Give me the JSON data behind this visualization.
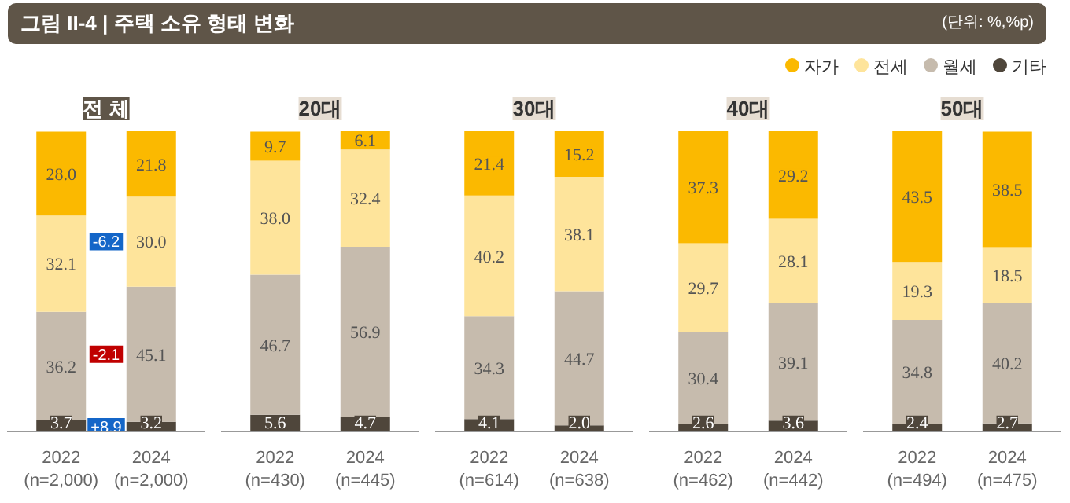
{
  "chart_data": [
    {
      "type": "bar",
      "stacked": true,
      "title": "그림 II-4 | 주택 소유 형태 변화",
      "legend_title": "전 체",
      "legend": "top right",
      "categories": [
        "2022\n(n=2,000)",
        "2024\n(n=2,000)"
      ],
      "series": [
        {
          "name": "기타",
          "color": "#4f463b",
          "values": [
            3.7,
            3.2
          ],
          "value_labels": [
            "3.7",
            "3.2"
          ]
        },
        {
          "name": "월세",
          "color": "#c6bbad",
          "values": [
            36.2,
            45.1
          ],
          "value_labels": [
            "36.2",
            "45.1"
          ]
        },
        {
          "name": "전세",
          "color": "#fee49b",
          "values": [
            32.1,
            30.0
          ],
          "value_labels": [
            "32.1",
            "30.0"
          ]
        },
        {
          "name": "자가",
          "color": "#fbb900",
          "values": [
            28.0,
            21.8
          ],
          "value_labels": [
            "28.0",
            "21.8"
          ]
        }
      ],
      "annotations": [
        "+8.9",
        "-2.1",
        "-6.2"
      ]
    },
    {
      "type": "bar",
      "stacked": true,
      "legend_title": "20대",
      "categories": [
        "2022\n(n=430)",
        "2024\n(n=445)"
      ],
      "series": [
        {
          "color": "#4f463b",
          "values": [
            5.6,
            4.7
          ],
          "value_labels": [
            "5.6",
            "4.7"
          ]
        },
        {
          "color": "#c6bbad",
          "values": [
            46.7,
            56.9
          ],
          "value_labels": [
            "46.7",
            "56.9"
          ]
        },
        {
          "color": "#fee49b",
          "values": [
            38.0,
            32.4
          ],
          "value_labels": [
            "38.0",
            "32.4"
          ]
        },
        {
          "color": "#fbb900",
          "values": [
            9.7,
            6.1
          ],
          "value_labels": [
            "9.7",
            "6.1"
          ]
        }
      ]
    },
    {
      "type": "bar",
      "stacked": true,
      "legend_title": "30대",
      "categories": [
        "2022\n(n=614)",
        "2024\n(n=638)"
      ],
      "series": [
        {
          "color": "#4f463b",
          "values": [
            4.1,
            2.0
          ],
          "value_labels": [
            "4.1",
            "2.0"
          ]
        },
        {
          "color": "#c6bbad",
          "values": [
            34.3,
            44.7
          ],
          "value_labels": [
            "34.3",
            "44.7"
          ]
        },
        {
          "color": "#fee49b",
          "values": [
            40.2,
            38.1
          ],
          "value_labels": [
            "40.2",
            "38.1"
          ]
        },
        {
          "color": "#fbb900",
          "values": [
            21.4,
            15.2
          ],
          "value_labels": [
            "21.4",
            "15.2"
          ]
        }
      ]
    },
    {
      "type": "bar",
      "stacked": true,
      "legend_title": "40대",
      "categories": [
        "2022\n(n=462)",
        "2024\n(n=442)"
      ],
      "series": [
        {
          "color": "#4f463b",
          "values": [
            2.6,
            3.6
          ],
          "value_labels": [
            "2.6",
            "3.6"
          ]
        },
        {
          "color": "#c6bbad",
          "values": [
            30.4,
            39.1
          ],
          "value_labels": [
            "30.4",
            "39.1"
          ]
        },
        {
          "color": "#fee49b",
          "values": [
            29.7,
            28.1
          ],
          "value_labels": [
            "29.7",
            "28.1"
          ]
        },
        {
          "color": "#fbb900",
          "values": [
            37.3,
            29.2
          ],
          "value_labels": [
            "37.3",
            "29.2"
          ]
        }
      ]
    },
    {
      "type": "bar",
      "stacked": true,
      "legend_title": "50대",
      "subtitle": "(단위: %,%p)",
      "categories": [
        "2022\n(n=494)",
        "2024\n(n=475)"
      ],
      "series": [
        {
          "color": "#4f463b",
          "values": [
            2.4,
            2.7
          ],
          "value_labels": [
            "2.4",
            "2.7"
          ]
        },
        {
          "color": "#c6bbad",
          "values": [
            34.8,
            40.2
          ],
          "value_labels": [
            "34.8",
            "40.2"
          ]
        },
        {
          "color": "#fee49b",
          "values": [
            19.3,
            18.5
          ],
          "value_labels": [
            "19.3",
            "18.5"
          ]
        },
        {
          "color": "#fbb900",
          "values": [
            43.5,
            38.5
          ],
          "value_labels": [
            "43.5",
            "38.5"
          ]
        }
      ]
    }
  ]
}
